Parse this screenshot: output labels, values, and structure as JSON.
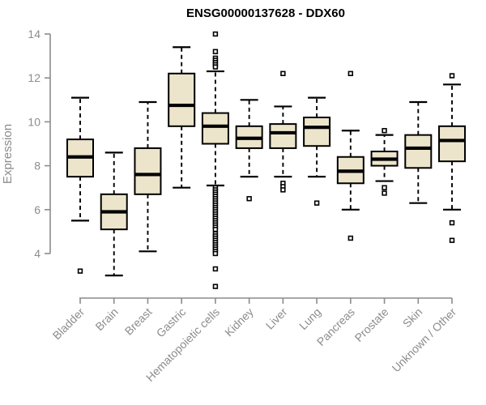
{
  "colors": {
    "box_fill": "#ECE5CB",
    "box_stroke": "#000000",
    "axis_gray": "#8C8C8C",
    "title_color": "#000000"
  },
  "chart_data": {
    "type": "boxplot",
    "title": "ENSG00000137628 - DDX60",
    "xlabel": "",
    "ylabel": "Expression",
    "ylim": [
      4,
      14
    ],
    "yticks": [
      4,
      6,
      8,
      10,
      12,
      14
    ],
    "grid": "off",
    "categories": [
      "Bladder",
      "Brain",
      "Breast",
      "Gastric",
      "Hematopoietic cells",
      "Kidney",
      "Liver",
      "Lung",
      "Pancreas",
      "Prostate",
      "Skin",
      "Unknown / Other"
    ],
    "series": [
      {
        "category": "Bladder",
        "whisker_low": 5.5,
        "q1": 7.5,
        "median": 8.4,
        "q3": 9.2,
        "whisker_high": 11.1,
        "outliers": [
          3.2
        ]
      },
      {
        "category": "Brain",
        "whisker_low": 3.0,
        "q1": 5.1,
        "median": 5.9,
        "q3": 6.7,
        "whisker_high": 8.6,
        "outliers": []
      },
      {
        "category": "Breast",
        "whisker_low": 4.1,
        "q1": 6.7,
        "median": 7.6,
        "q3": 8.8,
        "whisker_high": 10.9,
        "outliers": []
      },
      {
        "category": "Gastric",
        "whisker_low": 7.0,
        "q1": 9.8,
        "median": 10.75,
        "q3": 12.2,
        "whisker_high": 13.4,
        "outliers": []
      },
      {
        "category": "Hematopoietic cells",
        "whisker_low": 7.1,
        "q1": 9.0,
        "median": 9.8,
        "q3": 10.4,
        "whisker_high": 12.3,
        "outliers": [
          14.0,
          13.2,
          12.9,
          12.8,
          12.7,
          12.6,
          12.5,
          7.0,
          6.9,
          6.8,
          6.7,
          6.6,
          6.5,
          6.4,
          6.3,
          6.2,
          6.1,
          6.0,
          5.9,
          5.8,
          5.7,
          5.6,
          5.5,
          5.4,
          5.3,
          5.2,
          5.1,
          4.9,
          4.8,
          4.7,
          4.6,
          4.5,
          4.4,
          4.3,
          4.2,
          4.1,
          4.0,
          3.3,
          2.5
        ]
      },
      {
        "category": "Kidney",
        "whisker_low": 7.5,
        "q1": 8.8,
        "median": 9.25,
        "q3": 9.8,
        "whisker_high": 11.0,
        "outliers": [
          6.5
        ]
      },
      {
        "category": "Liver",
        "whisker_low": 7.5,
        "q1": 8.8,
        "median": 9.5,
        "q3": 9.9,
        "whisker_high": 10.7,
        "outliers": [
          12.2,
          7.2,
          7.05,
          6.9
        ]
      },
      {
        "category": "Lung",
        "whisker_low": 7.5,
        "q1": 8.9,
        "median": 9.75,
        "q3": 10.2,
        "whisker_high": 11.1,
        "outliers": [
          6.3
        ]
      },
      {
        "category": "Pancreas",
        "whisker_low": 6.0,
        "q1": 7.2,
        "median": 7.75,
        "q3": 8.4,
        "whisker_high": 9.6,
        "outliers": [
          12.2,
          4.7
        ]
      },
      {
        "category": "Prostate",
        "whisker_low": 7.3,
        "q1": 8.0,
        "median": 8.3,
        "q3": 8.65,
        "whisker_high": 9.4,
        "outliers": [
          9.6,
          7.0,
          6.75
        ]
      },
      {
        "category": "Skin",
        "whisker_low": 6.3,
        "q1": 7.9,
        "median": 8.8,
        "q3": 9.4,
        "whisker_high": 10.9,
        "outliers": []
      },
      {
        "category": "Unknown / Other",
        "whisker_low": 6.0,
        "q1": 8.2,
        "median": 9.15,
        "q3": 9.8,
        "whisker_high": 11.7,
        "outliers": [
          12.1,
          5.4,
          4.6
        ]
      }
    ]
  }
}
